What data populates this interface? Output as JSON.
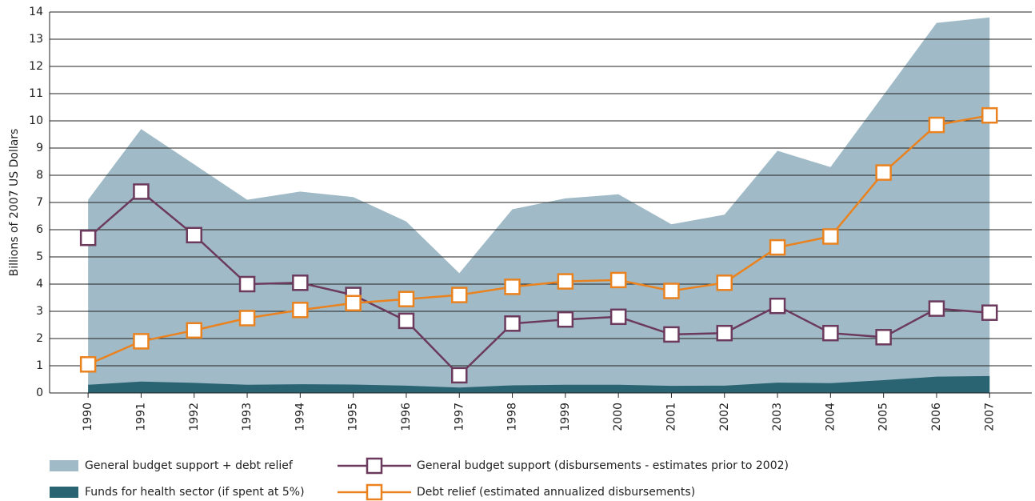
{
  "chart_data": {
    "type": "line",
    "y_label": "Billions of 2007 US Dollars",
    "categories": [
      "1990",
      "1991",
      "1992",
      "1993",
      "1994",
      "1995",
      "1996",
      "1997",
      "1998",
      "1999",
      "2000",
      "2001",
      "2002",
      "2003",
      "2004",
      "2005",
      "2006",
      "2007"
    ],
    "ylim": [
      0,
      14
    ],
    "yticks": [
      0,
      1,
      2,
      3,
      4,
      5,
      6,
      7,
      8,
      9,
      10,
      11,
      12,
      13,
      14
    ],
    "grid": true,
    "series": [
      {
        "name": "General budget support + debt relief",
        "type": "area",
        "color": "#a0bbc7",
        "values": [
          7.1,
          9.7,
          8.4,
          7.1,
          7.4,
          7.2,
          6.3,
          4.4,
          6.75,
          7.15,
          7.3,
          6.2,
          6.55,
          8.9,
          8.3,
          10.95,
          13.6,
          13.8
        ]
      },
      {
        "name": "Funds for health sector (if spent at 5%)",
        "type": "area",
        "color": "#2a6473",
        "values": [
          0.3,
          0.42,
          0.37,
          0.3,
          0.32,
          0.31,
          0.27,
          0.2,
          0.28,
          0.3,
          0.3,
          0.26,
          0.27,
          0.38,
          0.36,
          0.47,
          0.6,
          0.62
        ]
      },
      {
        "name": "General budget support (disbursements - estimates prior to 2002)",
        "type": "line",
        "color": "#6b3a5c",
        "values": [
          5.7,
          7.4,
          5.8,
          4.0,
          4.05,
          3.6,
          2.65,
          0.65,
          2.55,
          2.7,
          2.8,
          2.15,
          2.2,
          3.2,
          2.2,
          2.05,
          3.1,
          2.95
        ]
      },
      {
        "name": "Debt relief (estimated annualized disbursements)",
        "type": "line",
        "color": "#e9821f",
        "values": [
          1.05,
          1.9,
          2.3,
          2.75,
          3.05,
          3.3,
          3.45,
          3.6,
          3.9,
          4.1,
          4.15,
          3.75,
          4.05,
          5.35,
          5.75,
          8.1,
          9.85,
          10.2
        ]
      }
    ]
  }
}
